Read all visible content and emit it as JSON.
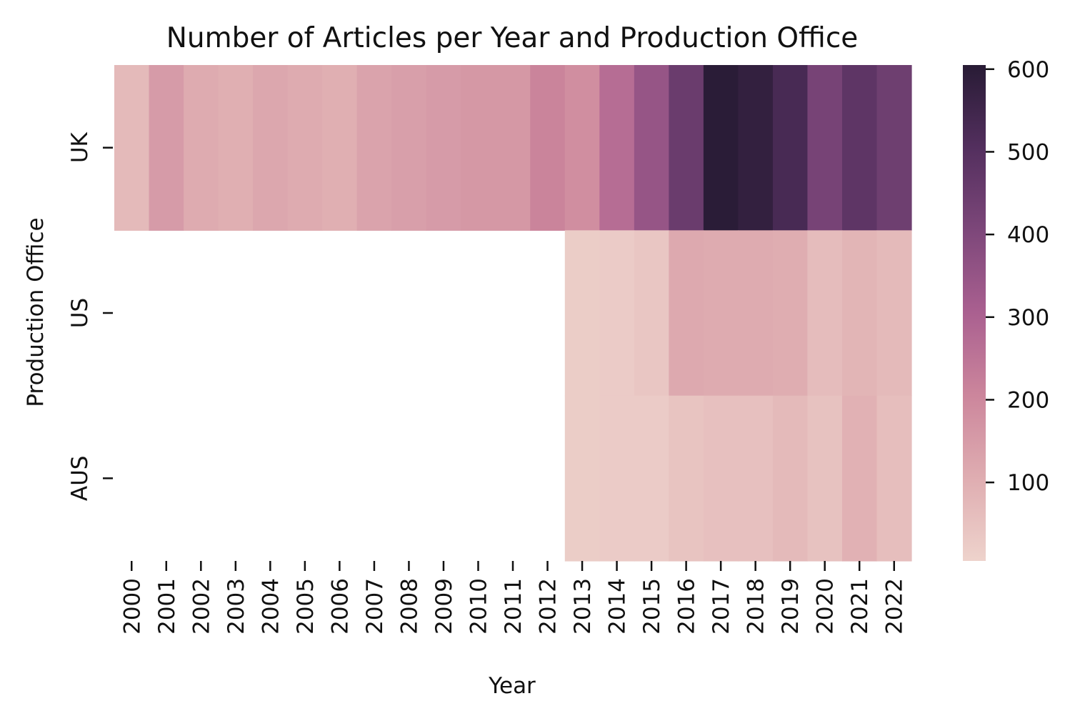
{
  "chart_data": {
    "type": "heatmap",
    "title": "Number of Articles per Year and Production Office",
    "xlabel": "Year",
    "ylabel": "Production Office",
    "x": [
      "2000",
      "2001",
      "2002",
      "2003",
      "2004",
      "2005",
      "2006",
      "2007",
      "2008",
      "2009",
      "2010",
      "2011",
      "2012",
      "2013",
      "2014",
      "2015",
      "2016",
      "2017",
      "2018",
      "2019",
      "2020",
      "2021",
      "2022"
    ],
    "y": [
      "UK",
      "US",
      "AUS"
    ],
    "values": [
      [
        70,
        150,
        110,
        100,
        120,
        110,
        100,
        130,
        140,
        150,
        160,
        160,
        210,
        185,
        270,
        350,
        450,
        600,
        580,
        530,
        420,
        480,
        440
      ],
      [
        null,
        null,
        null,
        null,
        null,
        null,
        null,
        null,
        null,
        null,
        null,
        null,
        null,
        22,
        25,
        40,
        115,
        110,
        110,
        105,
        65,
        85,
        70
      ],
      [
        null,
        null,
        null,
        null,
        null,
        null,
        null,
        null,
        null,
        null,
        null,
        null,
        null,
        22,
        25,
        25,
        45,
        55,
        55,
        70,
        50,
        95,
        60
      ]
    ],
    "colorbar": {
      "min": 5,
      "max": 605,
      "ticks": [
        100,
        200,
        300,
        400,
        500,
        600
      ]
    },
    "colormap": [
      "#eed3cc",
      "#df adb1",
      "#cc869c",
      "#aa6090",
      "#7d477a",
      "#532f5e",
      "#281b35"
    ]
  }
}
